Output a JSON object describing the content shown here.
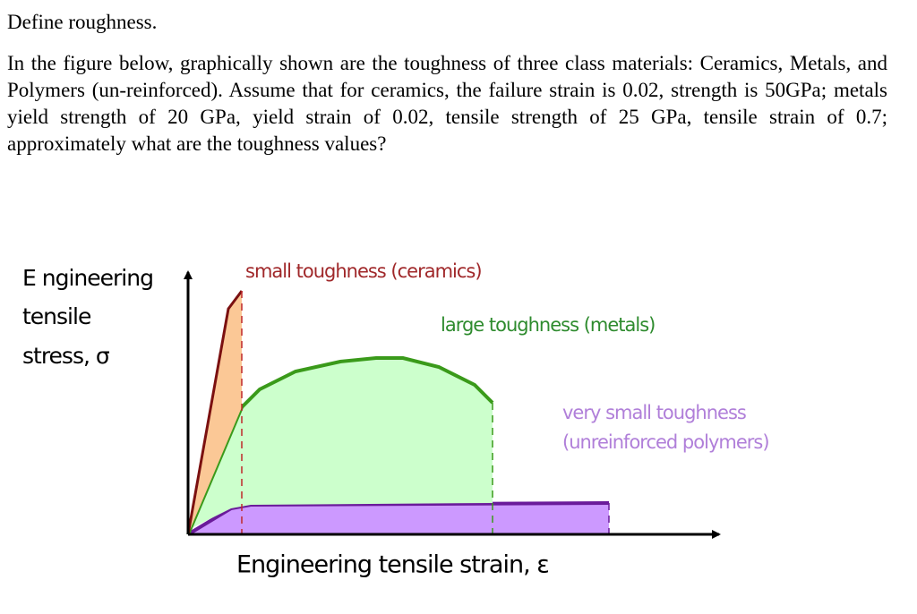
{
  "question": {
    "title": "Define roughness.",
    "body": "In the figure below, graphically shown are the toughness of three class materials: Ceramics, Metals, and Polymers (un-reinforced). Assume that for ceramics, the failure strain is 0.02, strength is 50GPa; metals yield strength of 20 GPa, yield strain of 0.02, tensile strength of 25 GPa, tensile strain of 0.7; approximately what are the toughness values?"
  },
  "figure": {
    "y_label": [
      "E ngineering",
      "tensile",
      "stress, σ"
    ],
    "x_label": "Engineering tensile strain, ε",
    "ceramics_label": "small toughness (ceramics)",
    "metals_label": "large toughness (metals)",
    "polymers_label": [
      "very small toughness",
      "(unreinforced polymers)"
    ]
  }
}
